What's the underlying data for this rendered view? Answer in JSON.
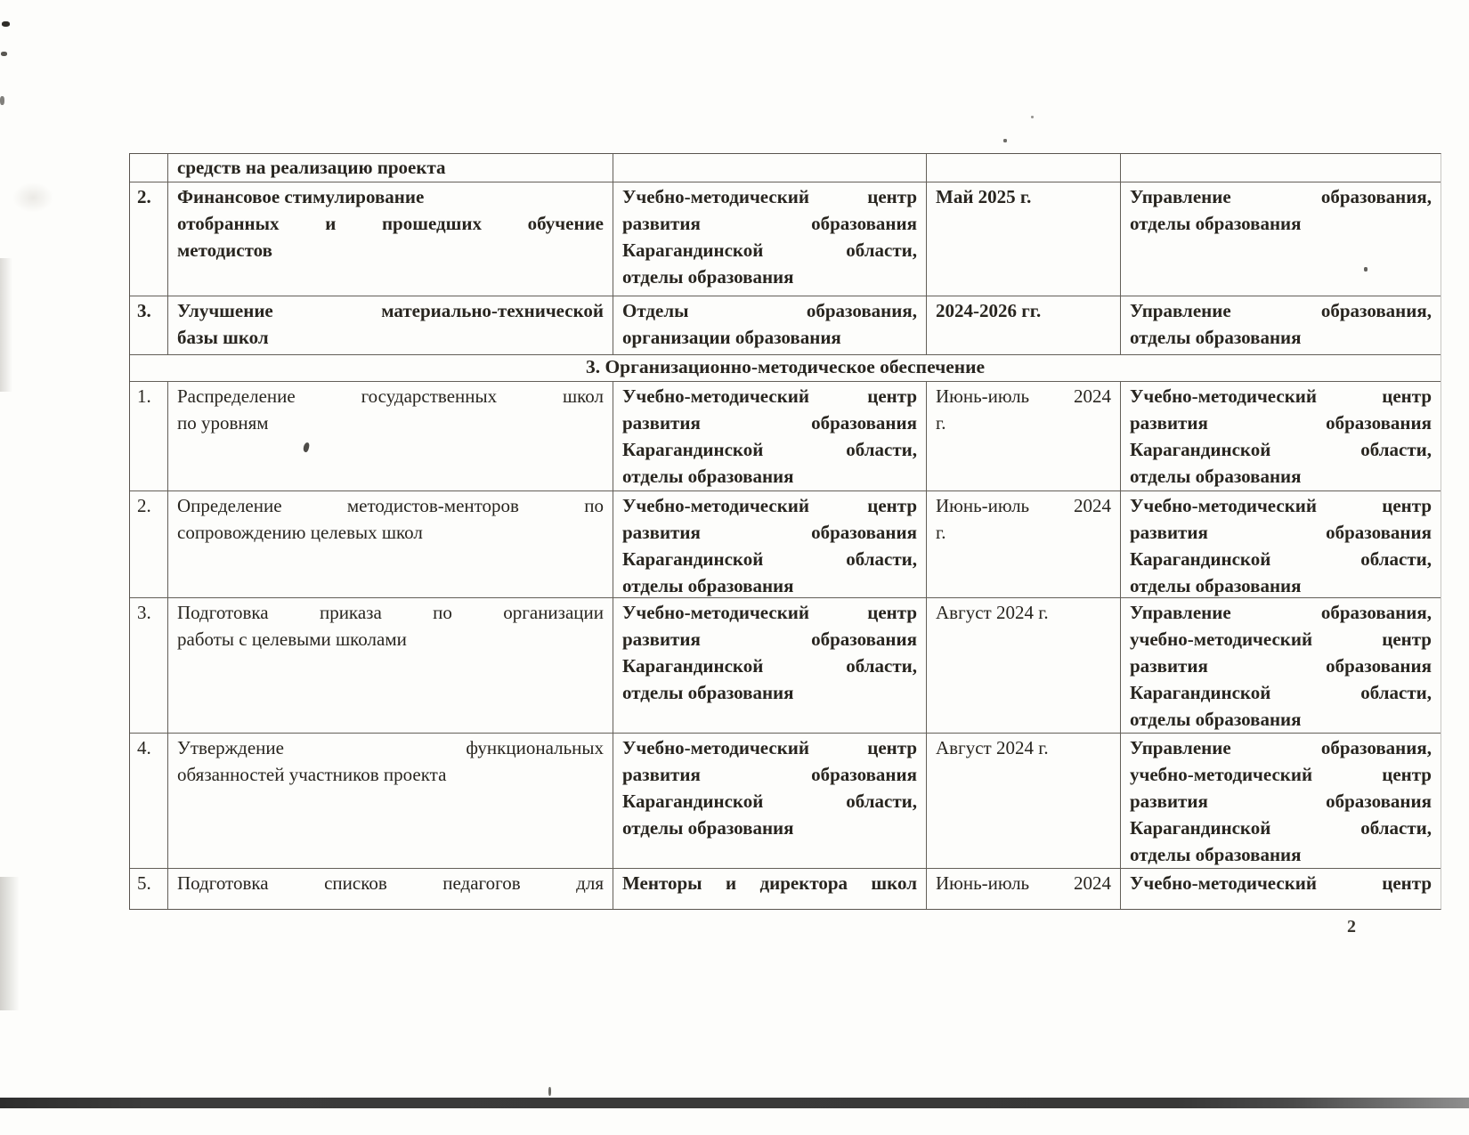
{
  "page": {
    "number": "2"
  },
  "table": {
    "rows": [
      {
        "type": "continuation",
        "bold": "all",
        "num": "",
        "task": [
          {
            "text": "средств на реализацию проекта",
            "stretch": false
          }
        ],
        "org": [],
        "date": [],
        "resp": []
      },
      {
        "type": "item",
        "bold": "all",
        "num": "2.",
        "task": [
          {
            "text": "Финансовое стимулирование",
            "stretch": false
          },
          {
            "text": "отобранных и прошедших обучение",
            "stretch": true
          },
          {
            "text": "методистов",
            "stretch": false
          }
        ],
        "org": [
          {
            "text": "Учебно-методический центр",
            "stretch": true
          },
          {
            "text": "развития образования",
            "stretch": true
          },
          {
            "text": "Карагандинской области,",
            "stretch": true
          },
          {
            "text": "отделы образования",
            "stretch": false
          }
        ],
        "date": [
          {
            "text": "Май 2025 г.",
            "stretch": false
          }
        ],
        "resp": [
          {
            "text": "Управление образования,",
            "stretch": true
          },
          {
            "text": "отделы образования",
            "stretch": false
          }
        ]
      },
      {
        "type": "item",
        "bold": "all",
        "num": "3.",
        "task": [
          {
            "text": "Улучшение материально-технической",
            "stretch": true
          },
          {
            "text": "базы школ",
            "stretch": false
          }
        ],
        "org": [
          {
            "text": "Отделы образования,",
            "stretch": true
          },
          {
            "text": "организации образования",
            "stretch": false
          }
        ],
        "date": [
          {
            "text": "2024-2026 гг.",
            "stretch": false
          }
        ],
        "resp": [
          {
            "text": "Управление образования,",
            "stretch": true
          },
          {
            "text": "отделы образования",
            "stretch": false
          }
        ]
      },
      {
        "type": "section",
        "label": "3. Организационно-методическое обеспечение"
      },
      {
        "type": "item",
        "bold": "org-resp",
        "num": "1.",
        "task": [
          {
            "text": "Распределение государственных школ",
            "stretch": true
          },
          {
            "text": "по уровням",
            "stretch": false
          }
        ],
        "org": [
          {
            "text": "Учебно-методический центр",
            "stretch": true
          },
          {
            "text": "развития образования",
            "stretch": true
          },
          {
            "text": "Карагандинской области,",
            "stretch": true
          },
          {
            "text": "отделы образования",
            "stretch": false
          }
        ],
        "date": [
          {
            "text": "Июнь-июль 2024",
            "stretch": true
          },
          {
            "text": "г.",
            "stretch": false
          }
        ],
        "resp": [
          {
            "text": "Учебно-методический центр",
            "stretch": true
          },
          {
            "text": "развития образования",
            "stretch": true
          },
          {
            "text": "Карагандинской области,",
            "stretch": true
          },
          {
            "text": "отделы образования",
            "stretch": false
          }
        ]
      },
      {
        "type": "item",
        "bold": "org-resp",
        "num": "2.",
        "task": [
          {
            "text": "Определение методистов-менторов по",
            "stretch": true
          },
          {
            "text": "сопровождению целевых школ",
            "stretch": false
          }
        ],
        "org": [
          {
            "text": "Учебно-методический центр",
            "stretch": true
          },
          {
            "text": "развития образования",
            "stretch": true
          },
          {
            "text": "Карагандинской области,",
            "stretch": true
          },
          {
            "text": "отделы образования",
            "stretch": false
          }
        ],
        "date": [
          {
            "text": "Июнь-июль 2024",
            "stretch": true
          },
          {
            "text": "г.",
            "stretch": false
          }
        ],
        "resp": [
          {
            "text": "Учебно-методический центр",
            "stretch": true
          },
          {
            "text": "развития образования",
            "stretch": true
          },
          {
            "text": "Карагандинской области,",
            "stretch": true
          },
          {
            "text": "отделы образования",
            "stretch": false
          }
        ]
      },
      {
        "type": "item",
        "bold": "org-resp",
        "num": "3.",
        "task": [
          {
            "text": "Подготовка приказа по организации",
            "stretch": true
          },
          {
            "text": "работы с целевыми школами",
            "stretch": false
          }
        ],
        "org": [
          {
            "text": "Учебно-методический центр",
            "stretch": true
          },
          {
            "text": "развития образования",
            "stretch": true
          },
          {
            "text": "Карагандинской области,",
            "stretch": true
          },
          {
            "text": "отделы образования",
            "stretch": false
          }
        ],
        "date": [
          {
            "text": "Август 2024 г.",
            "stretch": false
          }
        ],
        "resp": [
          {
            "text": "Управление образования,",
            "stretch": true
          },
          {
            "text": "учебно-методический центр",
            "stretch": true
          },
          {
            "text": "развития образования",
            "stretch": true
          },
          {
            "text": "Карагандинской области,",
            "stretch": true
          },
          {
            "text": "отделы образования",
            "stretch": false
          }
        ]
      },
      {
        "type": "item",
        "bold": "org-resp",
        "num": "4.",
        "task": [
          {
            "text": "Утверждение функциональных",
            "stretch": true
          },
          {
            "text": "обязанностей участников проекта",
            "stretch": false
          }
        ],
        "org": [
          {
            "text": "Учебно-методический центр",
            "stretch": true
          },
          {
            "text": "развития образования",
            "stretch": true
          },
          {
            "text": "Карагандинской области,",
            "stretch": true
          },
          {
            "text": "отделы образования",
            "stretch": false
          }
        ],
        "date": [
          {
            "text": "Август 2024 г.",
            "stretch": false
          }
        ],
        "resp": [
          {
            "text": "Управление образования,",
            "stretch": true
          },
          {
            "text": "учебно-методический центр",
            "stretch": true
          },
          {
            "text": "развития образования",
            "stretch": true
          },
          {
            "text": "Карагандинской области,",
            "stretch": true
          },
          {
            "text": "отделы образования",
            "stretch": false
          }
        ]
      },
      {
        "type": "item",
        "bold": "org-resp",
        "num": "5.",
        "task": [
          {
            "text": "Подготовка списков педагогов для",
            "stretch": true
          }
        ],
        "org": [
          {
            "text": "Менторы и директора школ",
            "stretch": true
          }
        ],
        "date": [
          {
            "text": "Июнь-июль 2024",
            "stretch": true
          }
        ],
        "resp": [
          {
            "text": "Учебно-методический центр",
            "stretch": true
          }
        ]
      }
    ]
  }
}
